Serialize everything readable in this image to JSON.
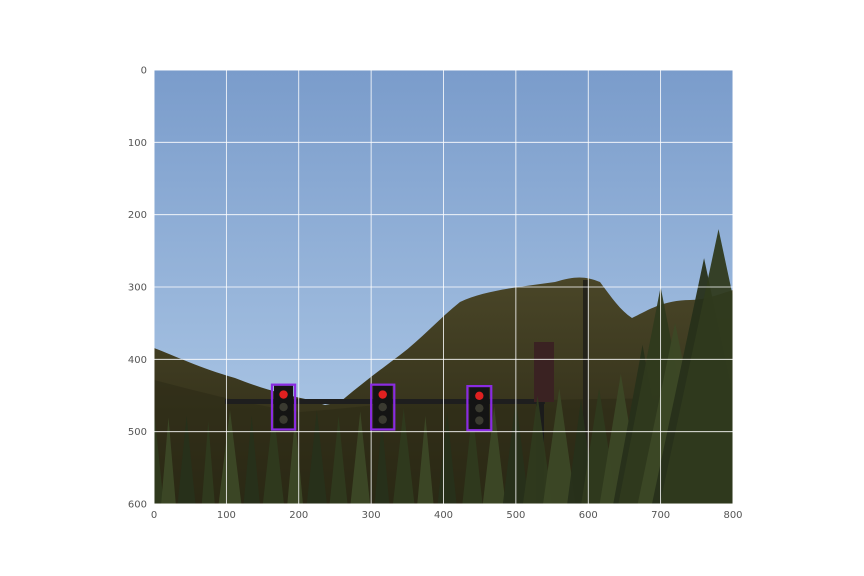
{
  "figure": {
    "x_ticks": [
      "0",
      "100",
      "200",
      "300",
      "400",
      "500",
      "600",
      "700",
      "800"
    ],
    "y_ticks": [
      "0",
      "100",
      "200",
      "300",
      "400",
      "500",
      "600"
    ],
    "x_range": [
      0,
      800
    ],
    "y_range": [
      0,
      600
    ],
    "y_axis_inverted": true,
    "grid": true,
    "grid_color": "#ffffff"
  },
  "scene": {
    "description_tokens": [
      "sky",
      "hills",
      "pine-trees",
      "traffic-light-pole"
    ],
    "sky_top_color": "#7a9ccb",
    "sky_bottom_color": "#a9c4e4",
    "hill_color": "#3d3a22"
  },
  "detections": [
    {
      "label": "traffic-light",
      "state": "red",
      "x_min": 163,
      "x_max": 195,
      "y_min": 435,
      "y_max": 497
    },
    {
      "label": "traffic-light",
      "state": "red",
      "x_min": 300,
      "x_max": 332,
      "y_min": 435,
      "y_max": 497
    },
    {
      "label": "traffic-light",
      "state": "red",
      "x_min": 433,
      "x_max": 466,
      "y_min": 437,
      "y_max": 498
    }
  ],
  "box_color": "#8a2be2",
  "lamp_on_color": "#e02020"
}
